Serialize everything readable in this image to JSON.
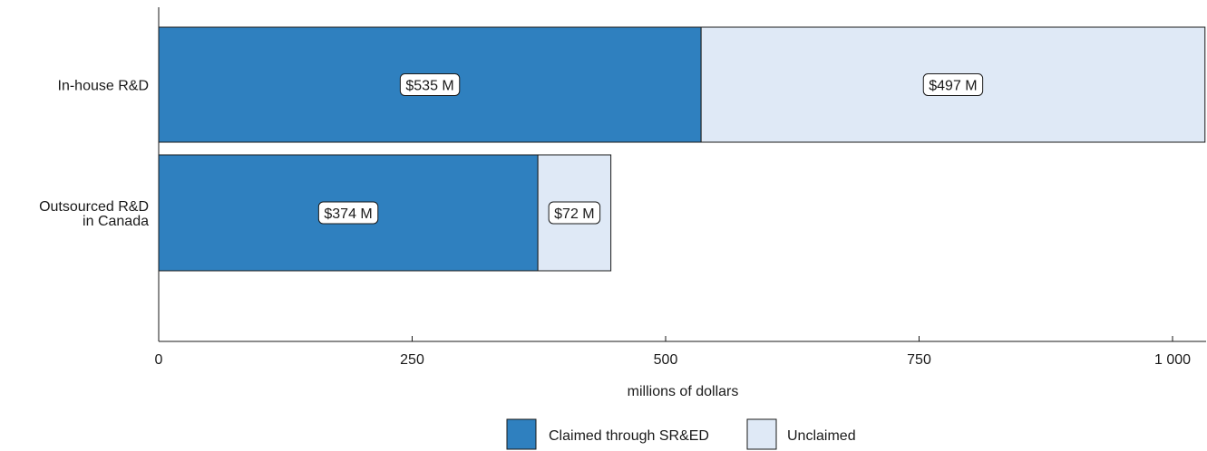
{
  "chart_data": {
    "type": "bar",
    "orientation": "horizontal",
    "stacked": true,
    "categories": [
      "In-house R&D",
      "Outsourced R&D in Canada"
    ],
    "category_label_lines": [
      [
        "In-house R&D"
      ],
      [
        "Outsourced R&D",
        "in Canada"
      ]
    ],
    "series": [
      {
        "name": "Claimed through SR&ED",
        "values": [
          535,
          374
        ],
        "labels": [
          "$535 M",
          "$374 M"
        ],
        "color": "#2f80bf"
      },
      {
        "name": "Unclaimed",
        "values": [
          497,
          72
        ],
        "labels": [
          "$497 M",
          "$72 M"
        ],
        "color": "#dfe9f6"
      }
    ],
    "xlabel": "millions of dollars",
    "ylabel": "",
    "xlim": [
      0,
      1040
    ],
    "xticks": [
      0,
      250,
      500,
      750,
      1000
    ],
    "xtick_labels": [
      "0",
      "250",
      "500",
      "750",
      "1 000"
    ],
    "grid": false,
    "legend_position": "bottom-center"
  }
}
